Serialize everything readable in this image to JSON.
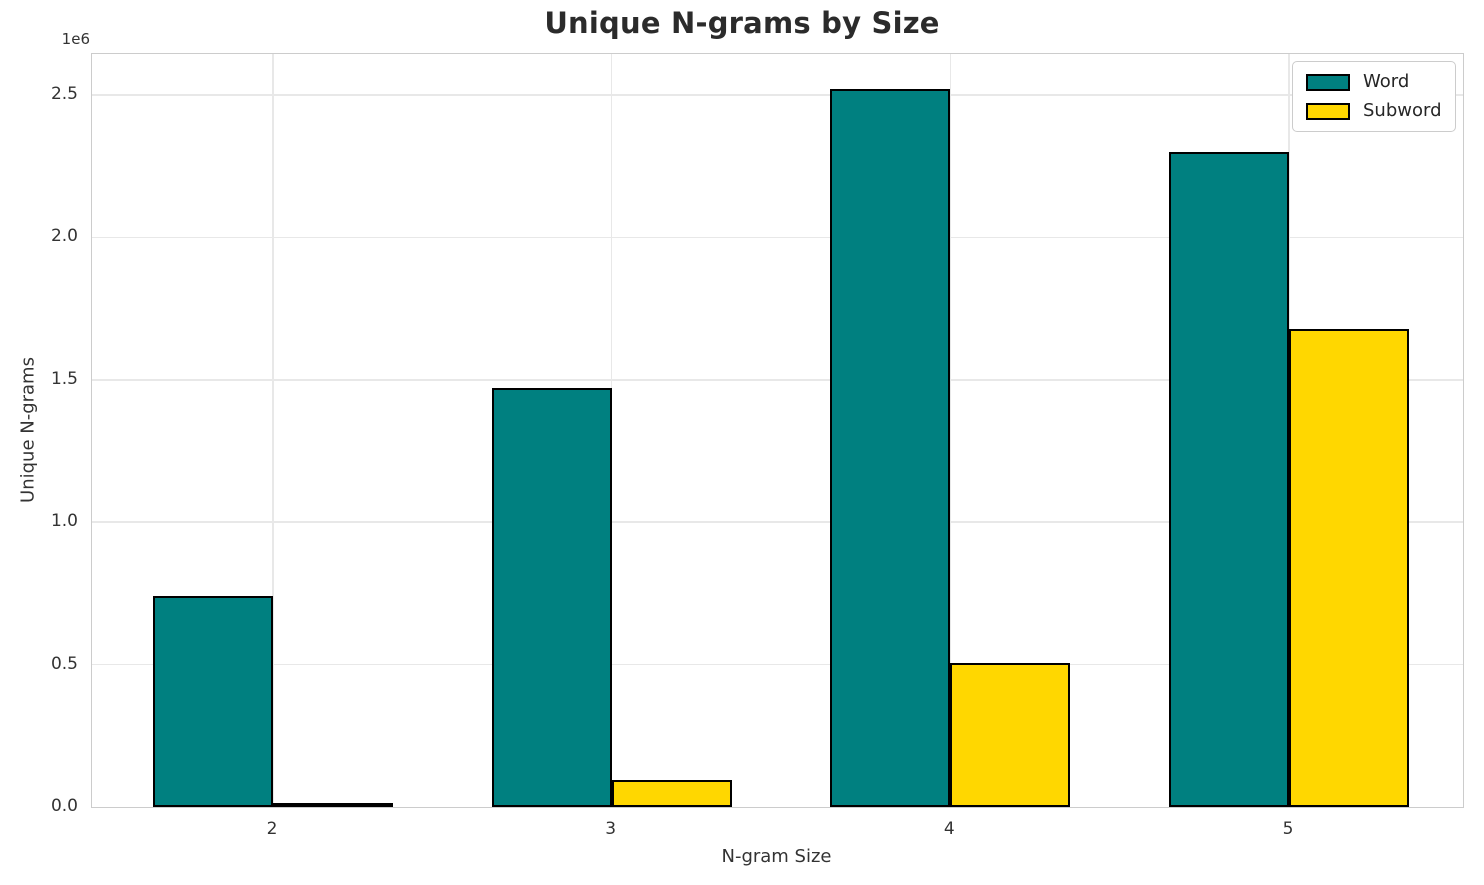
{
  "chart_data": {
    "type": "bar",
    "title": "Unique N-grams by Size",
    "xlabel": "N-gram Size",
    "ylabel": "Unique N-grams",
    "y_offset_label": "1e6",
    "categories": [
      "2",
      "3",
      "4",
      "5"
    ],
    "series": [
      {
        "name": "Word",
        "color": "#008080",
        "values": [
          740000,
          1470000,
          2520000,
          2300000
        ]
      },
      {
        "name": "Subword",
        "color": "#FFD700",
        "values": [
          15000,
          95000,
          505000,
          1680000
        ]
      }
    ],
    "bar_edge_color": "#000000",
    "ylim": [
      0,
      2644000
    ],
    "yticks": [
      0,
      500000,
      1000000,
      1500000,
      2000000,
      2500000
    ],
    "ytick_labels": [
      "0.0",
      "0.5",
      "1.0",
      "1.5",
      "2.0",
      "2.5"
    ],
    "grid": true,
    "legend_position": "upper right",
    "colors": {
      "grid": "#e8e8e8",
      "spine": "#cccccc",
      "text": "#333333",
      "title": "#2b2b2b"
    }
  }
}
